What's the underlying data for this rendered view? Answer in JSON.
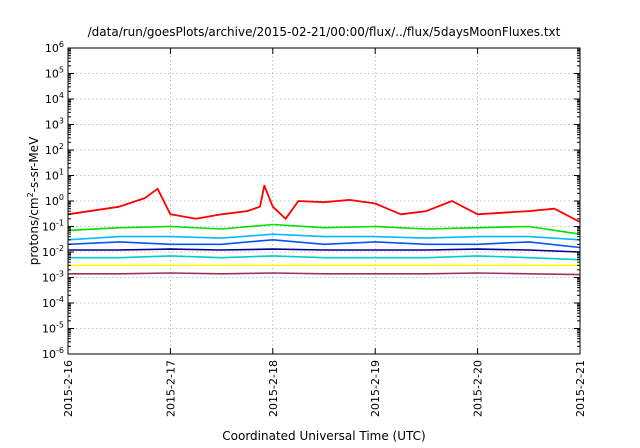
{
  "chart_data": {
    "type": "line",
    "title": "/data/run/goesPlots/archive/2015-02-21/00:00/flux/../flux/5daysMoonFluxes.txt",
    "xlabel": "Coordinated Universal Time (UTC)",
    "ylabel": {
      "prefix": "protons/cm",
      "superscript": "2",
      "suffix": "-s-sr-MeV"
    },
    "y_scale": "log",
    "ylim": [
      1e-06,
      1000000.0
    ],
    "y_tick_labels": [
      {
        "base": "10",
        "exp": "6",
        "value": 1000000.0
      },
      {
        "base": "10",
        "exp": "5",
        "value": 100000.0
      },
      {
        "base": "10",
        "exp": "4",
        "value": 10000.0
      },
      {
        "base": "10",
        "exp": "3",
        "value": 1000.0
      },
      {
        "base": "10",
        "exp": "2",
        "value": 100.0
      },
      {
        "base": "10",
        "exp": "1",
        "value": 10.0
      },
      {
        "base": "10",
        "exp": "0",
        "value": 1.0
      },
      {
        "base": "10",
        "exp": "-1",
        "value": 0.1
      },
      {
        "base": "10",
        "exp": "-2",
        "value": 0.01
      },
      {
        "base": "10",
        "exp": "-3",
        "value": 0.001
      },
      {
        "base": "10",
        "exp": "-4",
        "value": 0.0001
      },
      {
        "base": "10",
        "exp": "-5",
        "value": 1e-05
      },
      {
        "base": "10",
        "exp": "-6",
        "value": 1e-06
      }
    ],
    "x_range": [
      "2015-02-16",
      "2015-02-21"
    ],
    "x_tick_labels": [
      "2015-2-16",
      "2015-2-17",
      "2015-2-18",
      "2015-2-19",
      "2015-2-20",
      "2015-2-21"
    ],
    "grid": true,
    "legend": "none",
    "series": [
      {
        "color": "#ff0000",
        "x": [
          "2015-02-16",
          "2015-02-16T12:00",
          "2015-02-16T18:00",
          "2015-02-16T21:00",
          "2015-02-17",
          "2015-02-17T06:00",
          "2015-02-17T12:00",
          "2015-02-17T18:00",
          "2015-02-17T21:00",
          "2015-02-17T22:00",
          "2015-02-18",
          "2015-02-18T03:00",
          "2015-02-18T06:00",
          "2015-02-18T12:00",
          "2015-02-18T18:00",
          "2015-02-19",
          "2015-02-19T06:00",
          "2015-02-19T12:00",
          "2015-02-19T18:00",
          "2015-02-20",
          "2015-02-20T12:00",
          "2015-02-20T18:00",
          "2015-02-21"
        ],
        "y": [
          0.3,
          0.6,
          1.3,
          3.0,
          0.3,
          0.2,
          0.3,
          0.4,
          0.6,
          4.0,
          0.6,
          0.2,
          1.0,
          0.9,
          1.1,
          0.8,
          0.3,
          0.4,
          1.0,
          0.3,
          0.4,
          0.5,
          0.15
        ]
      },
      {
        "color": "#00dd00",
        "x": [
          "2015-02-16",
          "2015-02-16T12:00",
          "2015-02-17",
          "2015-02-17T12:00",
          "2015-02-18",
          "2015-02-18T12:00",
          "2015-02-19",
          "2015-02-19T12:00",
          "2015-02-20",
          "2015-02-20T12:00",
          "2015-02-21"
        ],
        "y": [
          0.07,
          0.09,
          0.1,
          0.08,
          0.12,
          0.09,
          0.1,
          0.08,
          0.09,
          0.1,
          0.05
        ]
      },
      {
        "color": "#00bbff",
        "x": [
          "2015-02-16",
          "2015-02-16T12:00",
          "2015-02-17",
          "2015-02-17T12:00",
          "2015-02-18",
          "2015-02-18T12:00",
          "2015-02-19",
          "2015-02-19T12:00",
          "2015-02-20",
          "2015-02-20T12:00",
          "2015-02-21"
        ],
        "y": [
          0.03,
          0.04,
          0.04,
          0.035,
          0.05,
          0.04,
          0.04,
          0.035,
          0.04,
          0.04,
          0.03
        ]
      },
      {
        "color": "#0055ff",
        "x": [
          "2015-02-16",
          "2015-02-16T12:00",
          "2015-02-17",
          "2015-02-17T12:00",
          "2015-02-18",
          "2015-02-18T12:00",
          "2015-02-19",
          "2015-02-19T12:00",
          "2015-02-20",
          "2015-02-20T12:00",
          "2015-02-21"
        ],
        "y": [
          0.02,
          0.025,
          0.02,
          0.02,
          0.03,
          0.02,
          0.025,
          0.02,
          0.02,
          0.025,
          0.015
        ]
      },
      {
        "color": "#000099",
        "x": [
          "2015-02-16",
          "2015-02-16T12:00",
          "2015-02-17",
          "2015-02-17T12:00",
          "2015-02-18",
          "2015-02-18T12:00",
          "2015-02-19",
          "2015-02-19T12:00",
          "2015-02-20",
          "2015-02-20T12:00",
          "2015-02-21"
        ],
        "y": [
          0.012,
          0.012,
          0.013,
          0.012,
          0.013,
          0.012,
          0.012,
          0.012,
          0.013,
          0.012,
          0.01
        ]
      },
      {
        "color": "#00cccc",
        "x": [
          "2015-02-16",
          "2015-02-16T12:00",
          "2015-02-17",
          "2015-02-17T12:00",
          "2015-02-18",
          "2015-02-18T12:00",
          "2015-02-19",
          "2015-02-19T12:00",
          "2015-02-20",
          "2015-02-20T12:00",
          "2015-02-21"
        ],
        "y": [
          0.006,
          0.006,
          0.007,
          0.006,
          0.007,
          0.006,
          0.006,
          0.006,
          0.007,
          0.006,
          0.005
        ]
      },
      {
        "color": "#ffff00",
        "x": [
          "2015-02-16",
          "2015-02-16T12:00",
          "2015-02-17",
          "2015-02-17T12:00",
          "2015-02-18",
          "2015-02-18T12:00",
          "2015-02-19",
          "2015-02-19T12:00",
          "2015-02-20",
          "2015-02-20T12:00",
          "2015-02-21"
        ],
        "y": [
          0.003,
          0.003,
          0.003,
          0.003,
          0.003,
          0.003,
          0.003,
          0.003,
          0.003,
          0.003,
          0.003
        ]
      },
      {
        "color": "#993366",
        "x": [
          "2015-02-16",
          "2015-02-16T12:00",
          "2015-02-17",
          "2015-02-17T12:00",
          "2015-02-18",
          "2015-02-18T12:00",
          "2015-02-19",
          "2015-02-19T12:00",
          "2015-02-20",
          "2015-02-20T12:00",
          "2015-02-21"
        ],
        "y": [
          0.0014,
          0.0014,
          0.0015,
          0.0014,
          0.0015,
          0.0014,
          0.0014,
          0.0014,
          0.0015,
          0.0014,
          0.0013
        ]
      }
    ]
  }
}
